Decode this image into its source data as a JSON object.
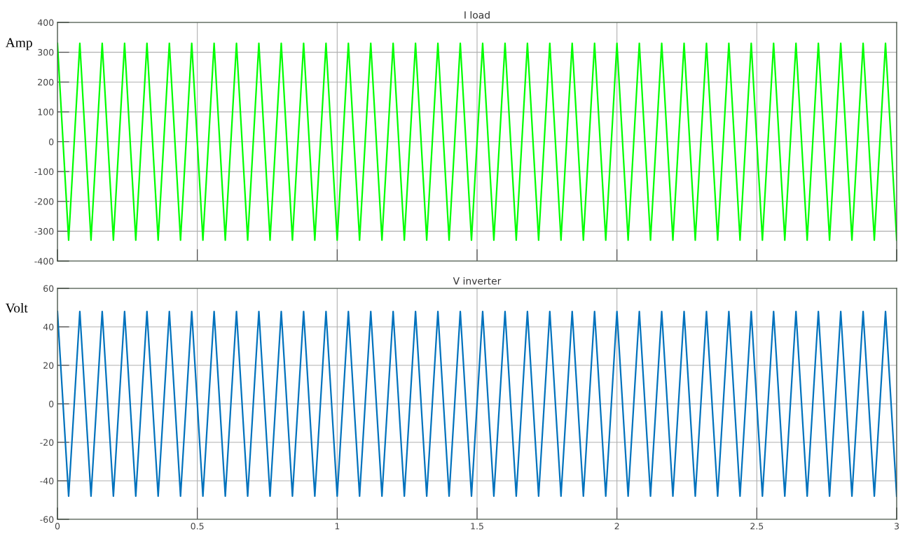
{
  "chart_data": [
    {
      "type": "line",
      "title": "I load",
      "ylabel": "Amp",
      "xlim": [
        0,
        3
      ],
      "xticks": [
        0,
        0.5,
        1,
        1.5,
        2,
        2.5,
        3
      ],
      "ylim": [
        -400,
        400
      ],
      "yticks": [
        -400,
        -300,
        -200,
        -100,
        0,
        100,
        200,
        300,
        400
      ],
      "grid": true,
      "tick_labels": "y",
      "x": [
        0,
        0.04,
        0.08,
        0.12,
        0.16,
        0.2,
        0.24,
        0.28,
        0.32,
        0.36,
        0.4,
        0.44,
        0.48,
        0.52,
        0.56,
        0.6,
        0.64,
        0.68,
        0.72,
        0.76,
        0.8,
        0.84,
        0.88,
        0.92,
        0.96,
        1,
        1.04,
        1.08,
        1.12,
        1.16,
        1.2,
        1.24,
        1.28,
        1.32,
        1.36,
        1.4,
        1.44,
        1.48,
        1.52,
        1.56,
        1.6,
        1.64,
        1.68,
        1.72,
        1.76,
        1.8,
        1.84,
        1.88,
        1.92,
        1.96,
        2,
        2.04,
        2.08,
        2.12,
        2.16,
        2.2,
        2.24,
        2.28,
        2.32,
        2.36,
        2.4,
        2.44,
        2.48,
        2.52,
        2.56,
        2.6,
        2.64,
        2.68,
        2.72,
        2.76,
        2.8,
        2.84,
        2.88,
        2.92,
        2.96,
        3
      ],
      "series": [
        {
          "color": "#00ff00",
          "values": [
            330,
            -330,
            330,
            -330,
            330,
            -330,
            330,
            -330,
            330,
            -330,
            330,
            -330,
            330,
            -330,
            330,
            -330,
            330,
            -330,
            330,
            -330,
            330,
            -330,
            330,
            -330,
            330,
            -330,
            330,
            -330,
            330,
            -330,
            330,
            -330,
            330,
            -330,
            330,
            -330,
            330,
            -330,
            330,
            -330,
            330,
            -330,
            330,
            -330,
            330,
            -330,
            330,
            -330,
            330,
            -330,
            330,
            -330,
            330,
            -330,
            330,
            -330,
            330,
            -330,
            330,
            -330,
            330,
            -330,
            330,
            -330,
            330,
            -330,
            330,
            -330,
            330,
            -330,
            330,
            -330,
            330,
            -330,
            330,
            -330
          ]
        }
      ]
    },
    {
      "type": "line",
      "title": "V inverter",
      "ylabel": "Volt",
      "xlim": [
        0,
        3
      ],
      "xticks": [
        0,
        0.5,
        1,
        1.5,
        2,
        2.5,
        3
      ],
      "ylim": [
        -60,
        60
      ],
      "yticks": [
        -60,
        -40,
        -20,
        0,
        20,
        40,
        60
      ],
      "grid": true,
      "x": [
        0,
        0.04,
        0.08,
        0.12,
        0.16,
        0.2,
        0.24,
        0.28,
        0.32,
        0.36,
        0.4,
        0.44,
        0.48,
        0.52,
        0.56,
        0.6,
        0.64,
        0.68,
        0.72,
        0.76,
        0.8,
        0.84,
        0.88,
        0.92,
        0.96,
        1,
        1.04,
        1.08,
        1.12,
        1.16,
        1.2,
        1.24,
        1.28,
        1.32,
        1.36,
        1.4,
        1.44,
        1.48,
        1.52,
        1.56,
        1.6,
        1.64,
        1.68,
        1.72,
        1.76,
        1.8,
        1.84,
        1.88,
        1.92,
        1.96,
        2,
        2.04,
        2.08,
        2.12,
        2.16,
        2.2,
        2.24,
        2.28,
        2.32,
        2.36,
        2.4,
        2.44,
        2.48,
        2.52,
        2.56,
        2.6,
        2.64,
        2.68,
        2.72,
        2.76,
        2.8,
        2.84,
        2.88,
        2.92,
        2.96,
        3
      ],
      "series": [
        {
          "color": "#0072bd",
          "values": [
            48,
            -48,
            48,
            -48,
            48,
            -48,
            48,
            -48,
            48,
            -48,
            48,
            -48,
            48,
            -48,
            48,
            -48,
            48,
            -48,
            48,
            -48,
            48,
            -48,
            48,
            -48,
            48,
            -48,
            48,
            -48,
            48,
            -48,
            48,
            -48,
            48,
            -48,
            48,
            -48,
            48,
            -48,
            48,
            -48,
            48,
            -48,
            48,
            -48,
            48,
            -48,
            48,
            -48,
            48,
            -48,
            48,
            -48,
            48,
            -48,
            48,
            -48,
            48,
            -48,
            48,
            -48,
            48,
            -48,
            48,
            -48,
            48,
            -48,
            48,
            -48,
            48,
            -48,
            48,
            -48,
            48,
            -48,
            48,
            -48
          ]
        }
      ]
    }
  ]
}
